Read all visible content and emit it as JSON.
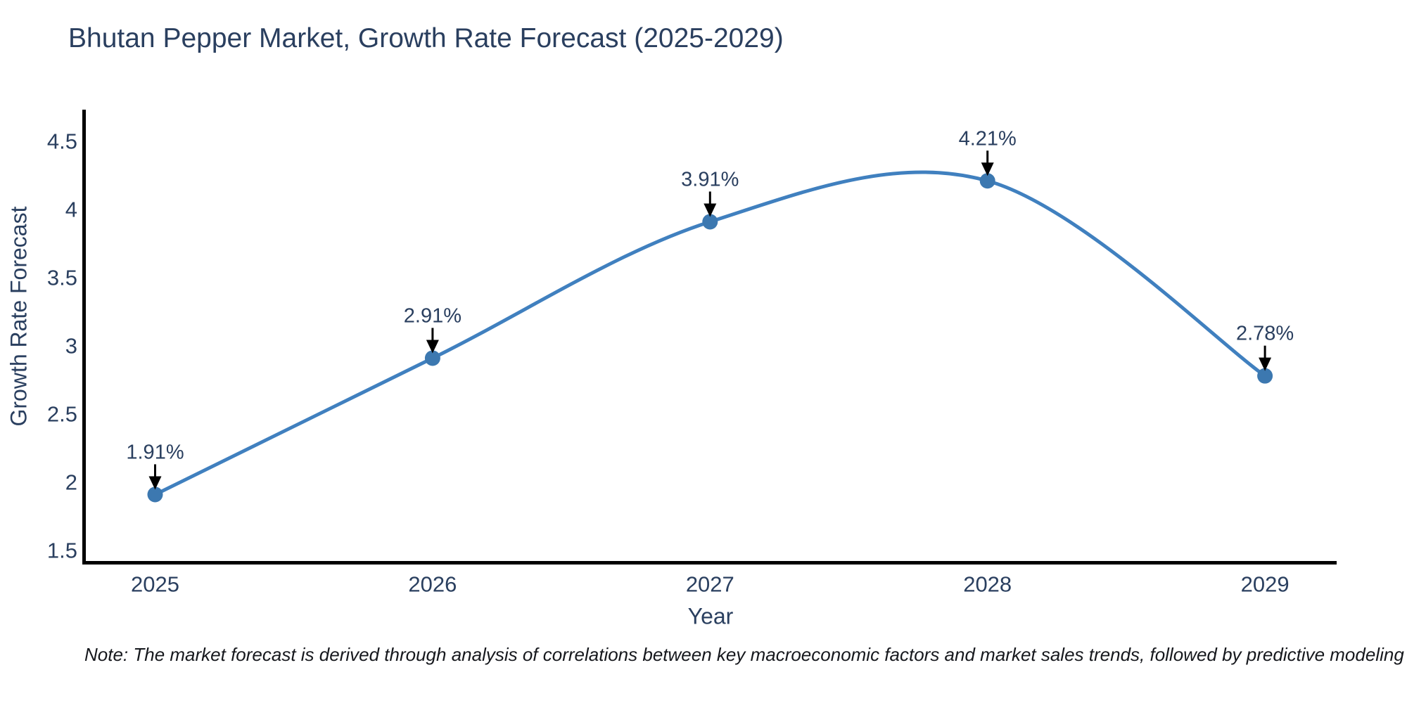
{
  "page": {
    "background": "#ffffff"
  },
  "header": {
    "title": "Bhutan Pepper Market, Growth Rate Forecast (2025-2029)"
  },
  "note": {
    "text": "Note: The market forecast is derived through analysis of correlations between key macroeconomic factors and market sales trends, followed by predictive modeling to project future sales"
  },
  "chart_data": {
    "type": "line",
    "title": "Bhutan Pepper Market, Growth Rate Forecast (2025-2029)",
    "xlabel": "Year",
    "ylabel": "Growth Rate Forecast",
    "line_shape": "spline",
    "grid": false,
    "legend_visible": false,
    "categories": [
      "2025",
      "2026",
      "2027",
      "2028",
      "2029"
    ],
    "x": [
      2025,
      2026,
      2027,
      2028,
      2029
    ],
    "series": [
      {
        "name": "Growth Rate Forecast",
        "values": [
          1.91,
          2.91,
          3.91,
          4.21,
          2.78
        ]
      }
    ],
    "annotations": [
      "1.91%",
      "2.91%",
      "3.91%",
      "4.21%",
      "2.78%"
    ],
    "y_ticks": [
      1.5,
      2,
      2.5,
      3,
      3.5,
      4,
      4.5
    ],
    "y_tick_labels": [
      "1.5",
      "2",
      "2.5",
      "3",
      "3.5",
      "4",
      "4.5"
    ],
    "ylim": [
      1.41,
      4.73
    ],
    "xlim": [
      2024.74,
      2029.26
    ],
    "colors": {
      "line": "#4080bf",
      "marker": "#3c78b0",
      "axis_line": "#000000",
      "tick_text": "#2a3f5f",
      "title_text": "#2a3f5f",
      "annotation_text": "#2a3f5f",
      "annotation_arrow": "#000000"
    }
  }
}
